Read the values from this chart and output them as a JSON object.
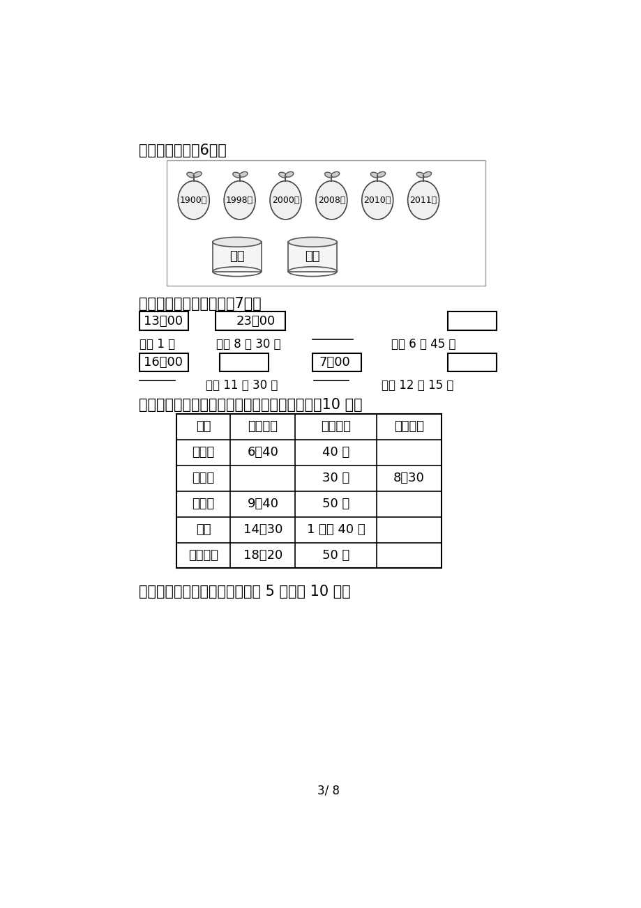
{
  "title_section4": "四、连一连。（6分）",
  "apple_years": [
    "1900年",
    "1998年",
    "2000年",
    "2008年",
    "2010年",
    "2011年"
  ],
  "bucket_labels": [
    "平年",
    "闰年"
  ],
  "title_section5": "五、照样子，填一填。（7分）",
  "title_section6": "六、下面是涛涛周末一天的安排，请填一填。（10 分）",
  "table_headers": [
    "活动",
    "开始时间",
    "经过时间",
    "结束时间"
  ],
  "table_rows": [
    [
      "踢足球",
      "6：40",
      "40 分",
      ""
    ],
    [
      "吃早餐",
      "",
      "30 分",
      "8：30"
    ],
    [
      "做作业",
      "9：40",
      "50 分",
      ""
    ],
    [
      "阅读",
      "14：30",
      "1 小时 40 分",
      ""
    ],
    [
      "看动画片",
      "18：20",
      "50 分",
      ""
    ]
  ],
  "title_section7": "七、（变式题）辨一辨。（每题 5 分，共 10 分）",
  "page_label": "3/ 8",
  "bg_color": "#ffffff"
}
